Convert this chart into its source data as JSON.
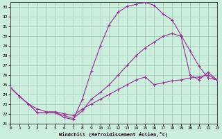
{
  "xlabel": "Windchill (Refroidissement éolien,°C)",
  "xlim": [
    0,
    23
  ],
  "ylim": [
    21,
    33.5
  ],
  "xticks": [
    0,
    1,
    2,
    3,
    4,
    5,
    6,
    7,
    8,
    9,
    10,
    11,
    12,
    13,
    14,
    15,
    16,
    17,
    18,
    19,
    20,
    21,
    22,
    23
  ],
  "yticks": [
    21,
    22,
    23,
    24,
    25,
    26,
    27,
    28,
    29,
    30,
    31,
    32,
    33
  ],
  "bg_color": "#cceedd",
  "grid_color": "#aaccbb",
  "line_color": "#993399",
  "line1_y": [
    24.7,
    23.8,
    23.0,
    22.1,
    22.1,
    22.1,
    21.6,
    21.4,
    23.5,
    26.4,
    29.0,
    31.2,
    32.5,
    33.1,
    33.3,
    33.5,
    33.2,
    32.3,
    31.7,
    30.1,
    28.5,
    26.9,
    25.7,
    25.5
  ],
  "line2_y": [
    24.7,
    23.8,
    23.0,
    22.1,
    22.1,
    22.1,
    21.8,
    21.5,
    22.3,
    23.5,
    24.2,
    25.0,
    26.0,
    27.0,
    28.0,
    28.8,
    29.4,
    30.0,
    30.3,
    30.0,
    26.0,
    25.5,
    26.3,
    25.5
  ],
  "line3_y": [
    24.7,
    23.8,
    23.0,
    22.5,
    22.2,
    22.2,
    22.0,
    21.8,
    22.5,
    23.0,
    23.5,
    24.0,
    24.5,
    25.0,
    25.5,
    25.8,
    25.0,
    25.2,
    25.4,
    25.5,
    25.7,
    25.8,
    26.0,
    25.5
  ]
}
